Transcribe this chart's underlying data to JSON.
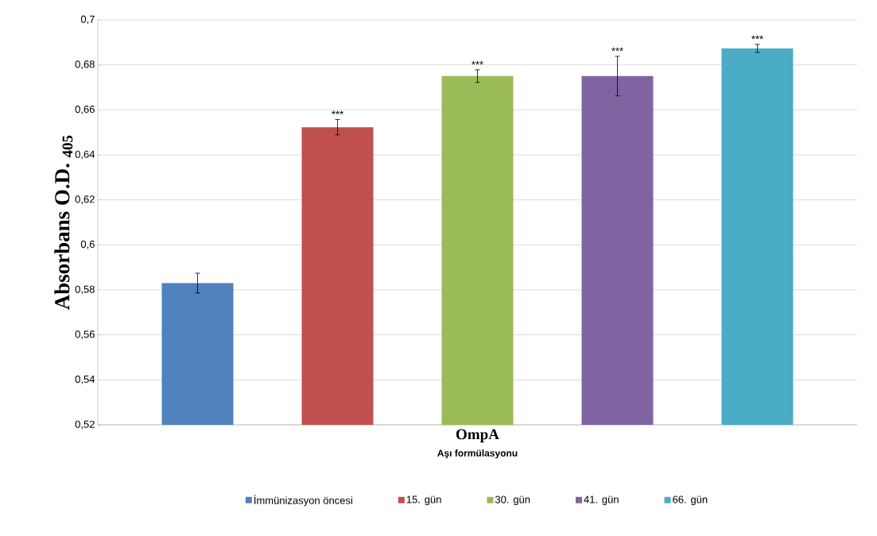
{
  "chart_data": {
    "type": "bar",
    "categories": [
      "OmpA"
    ],
    "xlabel": "Aşı formülasyonu",
    "ylabel": "Absorbans O.D. $_{405}$",
    "ylim": [
      0.52,
      0.7
    ],
    "yticks": [
      {
        "value": 0.52,
        "label": "0,52"
      },
      {
        "value": 0.54,
        "label": "0,54"
      },
      {
        "value": 0.56,
        "label": "0,56"
      },
      {
        "value": 0.58,
        "label": "0,58"
      },
      {
        "value": 0.6,
        "label": "0,6"
      },
      {
        "value": 0.62,
        "label": "0,62"
      },
      {
        "value": 0.64,
        "label": "0,64"
      },
      {
        "value": 0.66,
        "label": "0,66"
      },
      {
        "value": 0.68,
        "label": "0,68"
      },
      {
        "value": 0.7,
        "label": "0,7"
      }
    ],
    "grid": "y",
    "legend": "bottom",
    "series": [
      {
        "name": "İmmünizasyon öncesi",
        "color": "#4f81bd",
        "values": [
          0.583
        ],
        "errors": [
          0.0044
        ]
      },
      {
        "name": "15. gün",
        "color": "#c0504d",
        "values": [
          0.6523
        ],
        "errors": [
          0.0034
        ]
      },
      {
        "name": "30. gün",
        "color": "#9bbb59",
        "values": [
          0.675
        ],
        "errors": [
          0.0028
        ]
      },
      {
        "name": "41. gün",
        "color": "#8064a2",
        "values": [
          0.675
        ],
        "errors": [
          0.0088
        ]
      },
      {
        "name": "66. gün",
        "color": "#4bacc6",
        "values": [
          0.6873
        ],
        "errors": [
          0.0018
        ]
      }
    ],
    "annotations": [
      "***",
      "***",
      "***",
      "***"
    ]
  }
}
